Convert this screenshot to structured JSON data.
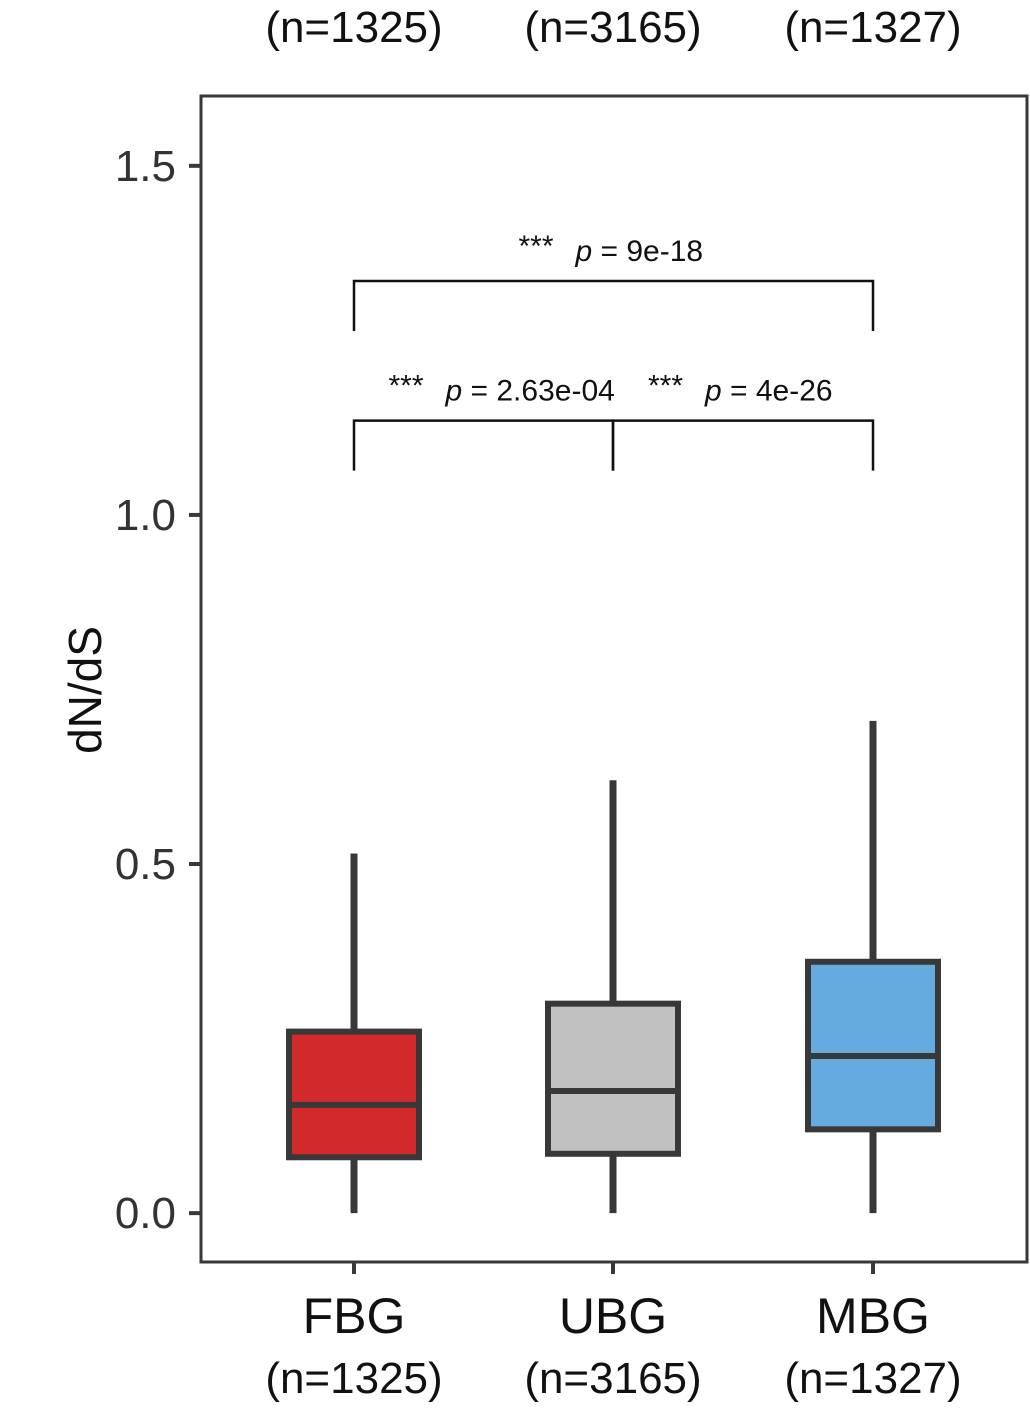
{
  "chart_data": {
    "type": "box",
    "ylabel": "dN/dS",
    "ylim": [
      -0.07,
      1.6
    ],
    "yticks": [
      "0.0",
      "0.5",
      "1.0",
      "1.5"
    ],
    "ytick_values": [
      0,
      0.5,
      1.0,
      1.5
    ],
    "grid": false,
    "categories": [
      "FBG",
      "UBG",
      "MBG"
    ],
    "counts": [
      "(n=1325)",
      "(n=3165)",
      "(n=1327)"
    ],
    "boxes": [
      {
        "name": "FBG",
        "whisker_low": 0.0,
        "q1": 0.08,
        "median": 0.155,
        "q3": 0.26,
        "whisker_high": 0.515,
        "color": "#d22a2a"
      },
      {
        "name": "UBG",
        "whisker_low": 0.0,
        "q1": 0.085,
        "median": 0.175,
        "q3": 0.3,
        "whisker_high": 0.62,
        "color": "#c1c1c1"
      },
      {
        "name": "MBG",
        "whisker_low": 0.0,
        "q1": 0.12,
        "median": 0.225,
        "q3": 0.36,
        "whisker_high": 0.705,
        "color": "#66abdf"
      }
    ],
    "comparisons": [
      {
        "pair": [
          "FBG",
          "UBG"
        ],
        "stars": "***",
        "p_symbol": "p",
        "p_text": " = 2.63e-04",
        "y": 1.135
      },
      {
        "pair": [
          "UBG",
          "MBG"
        ],
        "stars": "***",
        "p_symbol": "p",
        "p_text": " = 4e-26",
        "y": 1.135
      },
      {
        "pair": [
          "FBG",
          "MBG"
        ],
        "stars": "***",
        "p_symbol": "p",
        "p_text": " = 9e-18",
        "y": 1.335
      }
    ],
    "stroke_color": "#383838"
  }
}
